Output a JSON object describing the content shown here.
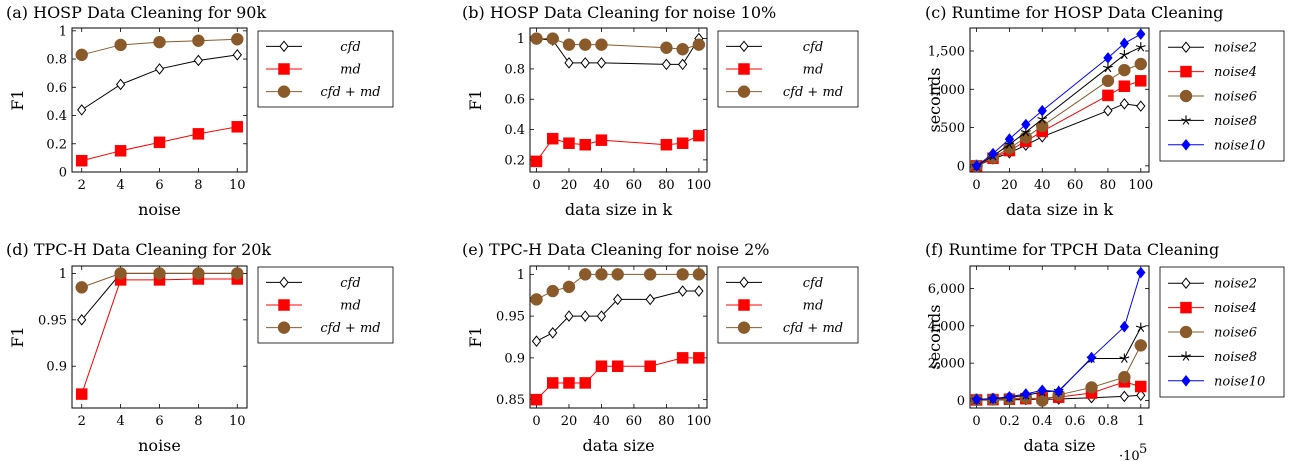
{
  "colors": {
    "black": "#000000",
    "red": "#ff0000",
    "brown": "#8b5a2b",
    "blue": "#0000ff"
  },
  "chart_data": [
    {
      "type": "line",
      "title": "(a) HOSP Data Cleaning for 90k",
      "xlabel": "noise",
      "ylabel": "F1",
      "xlim": [
        1.5,
        10.5
      ],
      "ylim": [
        0,
        1.02
      ],
      "xticks": [
        2,
        4,
        6,
        8,
        10
      ],
      "xtick_labels": [
        "2",
        "4",
        "6",
        "8",
        "10"
      ],
      "yticks": [
        0,
        0.2,
        0.4,
        0.6,
        0.8,
        1
      ],
      "ytick_labels": [
        "0",
        "0.2",
        "0.4",
        "0.6",
        "0.8",
        "1"
      ],
      "legend_position": "right",
      "series": [
        {
          "name": "cfd",
          "marker": "diamond",
          "color": "#000000",
          "x": [
            2,
            4,
            6,
            8,
            10
          ],
          "values": [
            0.44,
            0.62,
            0.73,
            0.79,
            0.83
          ]
        },
        {
          "name": "md",
          "marker": "square",
          "color": "#ff0000",
          "x": [
            2,
            4,
            6,
            8,
            10
          ],
          "values": [
            0.08,
            0.15,
            0.21,
            0.27,
            0.32
          ]
        },
        {
          "name": "cfd + md",
          "marker": "circle",
          "color": "#8b5a2b",
          "x": [
            2,
            4,
            6,
            8,
            10
          ],
          "values": [
            0.83,
            0.9,
            0.92,
            0.93,
            0.94
          ]
        }
      ]
    },
    {
      "type": "line",
      "title": "(b) HOSP Data Cleaning for noise 10%",
      "xlabel": "data size in k",
      "ylabel": "F1",
      "xlim": [
        -4,
        105
      ],
      "ylim": [
        0.12,
        1.07
      ],
      "xticks": [
        0,
        20,
        40,
        60,
        80,
        100
      ],
      "xtick_labels": [
        "0",
        "20",
        "40",
        "60",
        "80",
        "100"
      ],
      "yticks": [
        0.2,
        0.4,
        0.6,
        0.8,
        1
      ],
      "ytick_labels": [
        "0.2",
        "0.4",
        "0.6",
        "0.8",
        "1"
      ],
      "legend_position": "right",
      "series": [
        {
          "name": "cfd",
          "marker": "diamond",
          "color": "#000000",
          "x": [
            0,
            10,
            20,
            30,
            40,
            80,
            90,
            100
          ],
          "values": [
            1.0,
            0.99,
            0.84,
            0.84,
            0.84,
            0.83,
            0.83,
            1.0
          ]
        },
        {
          "name": "md",
          "marker": "square",
          "color": "#ff0000",
          "x": [
            0,
            10,
            20,
            30,
            40,
            80,
            90,
            100
          ],
          "values": [
            0.19,
            0.34,
            0.31,
            0.3,
            0.33,
            0.3,
            0.31,
            0.36
          ]
        },
        {
          "name": "cfd + md",
          "marker": "circle",
          "color": "#8b5a2b",
          "x": [
            0,
            10,
            20,
            30,
            40,
            80,
            90,
            100
          ],
          "values": [
            1.0,
            1.0,
            0.96,
            0.96,
            0.96,
            0.94,
            0.93,
            0.96
          ]
        }
      ]
    },
    {
      "type": "line",
      "title": "(c) Runtime for HOSP Data Cleaning",
      "xlabel": "data size in k",
      "ylabel": "seconds",
      "xlim": [
        -4,
        105
      ],
      "ylim": [
        -80,
        1800
      ],
      "xticks": [
        0,
        20,
        40,
        60,
        80,
        100
      ],
      "xtick_labels": [
        "0",
        "20",
        "40",
        "60",
        "80",
        "100"
      ],
      "yticks": [
        0,
        500,
        1000,
        1500
      ],
      "ytick_labels": [
        "0",
        "500",
        "1,000",
        "1,500"
      ],
      "legend_position": "right",
      "series": [
        {
          "name": "noise2",
          "marker": "diamond",
          "color": "#000000",
          "x": [
            0,
            10,
            20,
            30,
            40,
            80,
            90,
            100
          ],
          "values": [
            0,
            90,
            170,
            270,
            380,
            720,
            810,
            780
          ]
        },
        {
          "name": "noise4",
          "marker": "square",
          "color": "#ff0000",
          "x": [
            0,
            10,
            20,
            30,
            40,
            80,
            90,
            100
          ],
          "values": [
            0,
            100,
            200,
            320,
            450,
            920,
            1040,
            1110
          ]
        },
        {
          "name": "noise6",
          "marker": "circle",
          "color": "#8b5a2b",
          "x": [
            0,
            10,
            20,
            30,
            40,
            80,
            90,
            100
          ],
          "values": [
            0,
            110,
            230,
            370,
            520,
            1110,
            1250,
            1330
          ]
        },
        {
          "name": "noise8",
          "marker": "star",
          "color": "#000000",
          "x": [
            0,
            10,
            20,
            30,
            40,
            80,
            90,
            100
          ],
          "values": [
            0,
            130,
            280,
            440,
            610,
            1280,
            1450,
            1550
          ]
        },
        {
          "name": "noise10",
          "marker": "diamond",
          "color": "#0000ff",
          "x": [
            0,
            10,
            20,
            30,
            40,
            80,
            90,
            100
          ],
          "values": [
            0,
            160,
            350,
            540,
            720,
            1410,
            1600,
            1720
          ]
        }
      ]
    },
    {
      "type": "line",
      "title": "(d) TPC-H Data Cleaning for 20k",
      "xlabel": "noise",
      "ylabel": "F1",
      "xlim": [
        1.5,
        10.5
      ],
      "ylim": [
        0.855,
        1.008
      ],
      "xticks": [
        2,
        4,
        6,
        8,
        10
      ],
      "xtick_labels": [
        "2",
        "4",
        "6",
        "8",
        "10"
      ],
      "yticks": [
        0.9,
        0.95,
        1
      ],
      "ytick_labels": [
        "0.9",
        "0.95",
        "1"
      ],
      "legend_position": "right",
      "series": [
        {
          "name": "cfd",
          "marker": "diamond",
          "color": "#000000",
          "x": [
            2,
            4,
            6,
            8,
            10
          ],
          "values": [
            0.95,
            1.0,
            1.0,
            1.0,
            1.0
          ]
        },
        {
          "name": "md",
          "marker": "square",
          "color": "#ff0000",
          "x": [
            2,
            4,
            6,
            8,
            10
          ],
          "values": [
            0.87,
            0.993,
            0.993,
            0.994,
            0.994
          ]
        },
        {
          "name": "cfd + md",
          "marker": "circle",
          "color": "#8b5a2b",
          "x": [
            2,
            4,
            6,
            8,
            10
          ],
          "values": [
            0.985,
            1.0,
            1.0,
            1.0,
            1.0
          ]
        }
      ]
    },
    {
      "type": "line",
      "title": "(e) TPC-H Data Cleaning for noise 2%",
      "xlabel": "data size",
      "ylabel": "F1",
      "xlim": [
        -4,
        105
      ],
      "ylim": [
        0.84,
        1.01
      ],
      "xticks": [
        0,
        20,
        40,
        60,
        80,
        100
      ],
      "xtick_labels": [
        "0",
        "20",
        "40",
        "60",
        "80",
        "100"
      ],
      "yticks": [
        0.85,
        0.9,
        0.95,
        1
      ],
      "ytick_labels": [
        "0.85",
        "0.9",
        "0.95",
        "1"
      ],
      "legend_position": "right",
      "series": [
        {
          "name": "cfd",
          "marker": "diamond",
          "color": "#000000",
          "x": [
            0,
            10,
            20,
            30,
            40,
            50,
            70,
            90,
            100
          ],
          "values": [
            0.92,
            0.93,
            0.95,
            0.95,
            0.95,
            0.97,
            0.97,
            0.98,
            0.98
          ]
        },
        {
          "name": "md",
          "marker": "square",
          "color": "#ff0000",
          "x": [
            0,
            10,
            20,
            30,
            40,
            50,
            70,
            90,
            100
          ],
          "values": [
            0.85,
            0.87,
            0.87,
            0.87,
            0.89,
            0.89,
            0.89,
            0.9,
            0.9
          ]
        },
        {
          "name": "cfd + md",
          "marker": "circle",
          "color": "#8b5a2b",
          "x": [
            0,
            10,
            20,
            30,
            40,
            50,
            70,
            90,
            100
          ],
          "values": [
            0.97,
            0.98,
            0.985,
            1.0,
            1.0,
            1.0,
            1.0,
            1.0,
            1.0
          ]
        }
      ]
    },
    {
      "type": "line",
      "title": "(f) Runtime for TPCH Data Cleaning",
      "xlabel": "data size",
      "ylabel": "seconds",
      "xlim": [
        -0.04,
        1.05
      ],
      "ylim": [
        -400,
        7200
      ],
      "xticks": [
        0,
        0.2,
        0.4,
        0.6,
        0.8,
        1
      ],
      "xtick_labels": [
        "0",
        "0.2",
        "0.4",
        "0.6",
        "0.8",
        "1"
      ],
      "yticks": [
        0,
        2000,
        4000,
        6000
      ],
      "ytick_labels": [
        "0",
        "2,000",
        "4,000",
        "6,000"
      ],
      "x_multiplier_label": "·10",
      "x_multiplier_exponent": "5",
      "legend_position": "right",
      "series": [
        {
          "name": "noise2",
          "marker": "diamond",
          "color": "#000000",
          "x": [
            0,
            0.1,
            0.2,
            0.3,
            0.4,
            0.5,
            0.7,
            0.9,
            1.0
          ],
          "values": [
            20,
            30,
            40,
            50,
            60,
            80,
            150,
            220,
            280
          ]
        },
        {
          "name": "noise4",
          "marker": "square",
          "color": "#ff0000",
          "x": [
            0,
            0.1,
            0.2,
            0.3,
            0.4,
            0.5,
            0.7,
            0.9,
            1.0
          ],
          "values": [
            30,
            50,
            70,
            100,
            130,
            180,
            400,
            1000,
            750
          ]
        },
        {
          "name": "noise6",
          "marker": "circle",
          "color": "#8b5a2b",
          "x": [
            0,
            0.1,
            0.2,
            0.3,
            0.4,
            0.5,
            0.7,
            0.9,
            1.0
          ],
          "values": [
            40,
            60,
            90,
            150,
            0,
            300,
            700,
            1250,
            2950
          ]
        },
        {
          "name": "noise8",
          "marker": "star",
          "color": "#000000",
          "x": [
            0,
            0.1,
            0.2,
            0.3,
            0.4,
            0.5,
            0.7,
            0.9,
            1.0
          ],
          "values": [
            50,
            90,
            160,
            280,
            450,
            520,
            2250,
            2250,
            3900
          ]
        },
        {
          "name": "noise10",
          "marker": "diamond",
          "color": "#0000ff",
          "x": [
            0,
            0.1,
            0.2,
            0.3,
            0.4,
            0.5,
            0.7,
            0.9,
            1.0
          ],
          "values": [
            60,
            110,
            200,
            350,
            550,
            480,
            2300,
            3950,
            6850
          ]
        }
      ]
    }
  ]
}
